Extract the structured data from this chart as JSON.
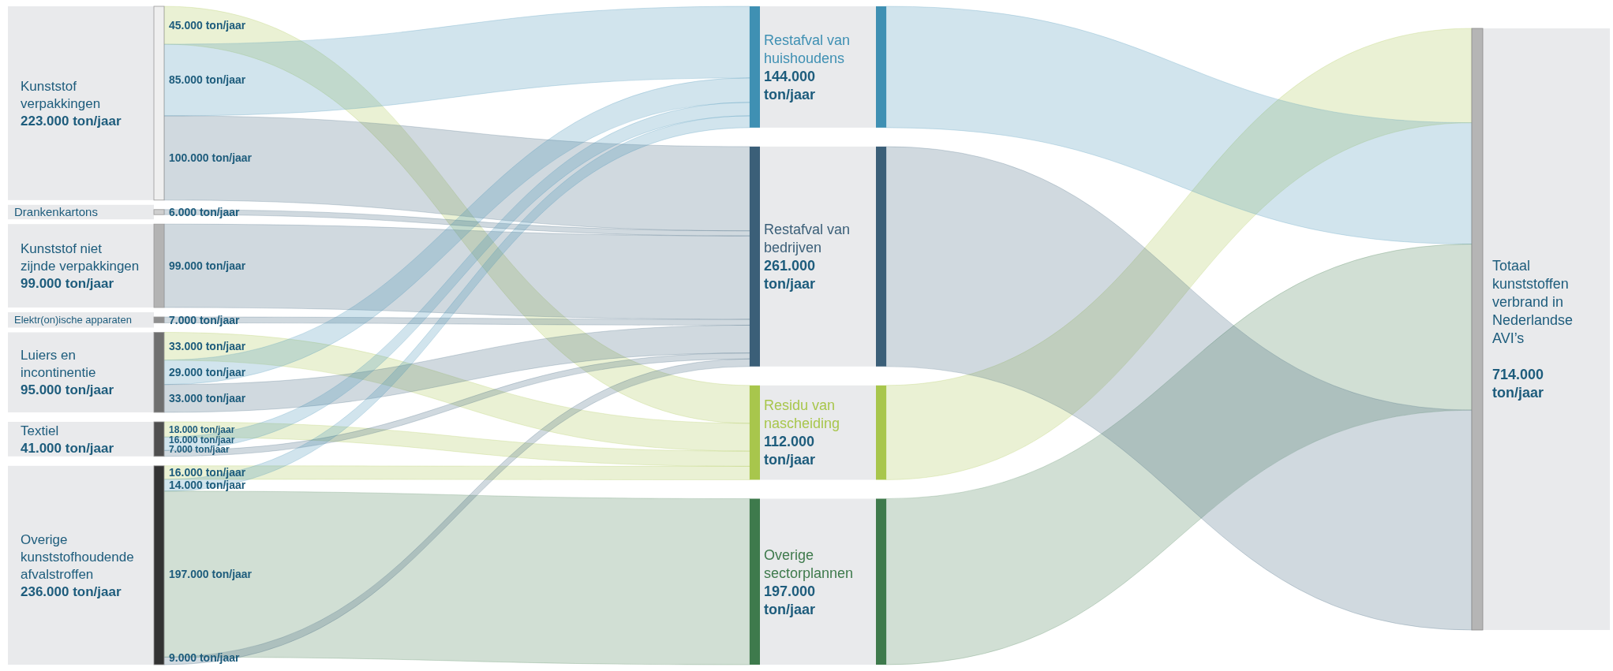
{
  "chart_data": {
    "type": "other",
    "categories": [
      "Kunststof verpakkingen",
      "Drankenkartons",
      "Kunststof niet zijnde verpakkingen",
      "Elektr(on)ische apparaten",
      "Luiers en incontinentie",
      "Textiel",
      "Overige kunststofhoudende afvalstroffen"
    ],
    "colors": [
      "#efefef",
      "#cfcfcf",
      "#b3b3b3",
      "#8f8f8f",
      "#6f6f6f",
      "#4f4f4f",
      "#333333"
    ],
    "totals": [
      "223.000 ton/jaar",
      null,
      "99.000 ton/jaar",
      null,
      "95.000 ton/jaar",
      "41.000 ton/jaar",
      "236.000 ton/jaar"
    ],
    "series": [
      {
        "name": "Restafval van huishoudens",
        "color": "#3f90b3",
        "values": [
          85000,
          null,
          null,
          null,
          29000,
          16000,
          14000
        ],
        "value_labels": [
          "85.000 ton/jaar",
          null,
          null,
          null,
          "29.000 ton/jaar",
          "16.000 ton/jaar",
          "14.000 ton/jaar"
        ]
      },
      {
        "name": "Restafval van bedrijven",
        "color": "#3b5f78",
        "values": [
          100000,
          6000,
          99000,
          7000,
          33000,
          7000,
          9000
        ],
        "value_labels": [
          "100.000 ton/jaar",
          "6.000 ton/jaar",
          "99.000 ton/jaar",
          "7.000 ton/jaar",
          "33.000 ton/jaar",
          "7.000 ton/jaar",
          "9.000 ton/jaar"
        ]
      },
      {
        "name": "Residu van nascheiding",
        "color": "#a8c64c",
        "values": [
          45000,
          null,
          null,
          null,
          33000,
          18000,
          16000
        ],
        "value_labels": [
          "45.000 ton/jaar",
          null,
          null,
          null,
          "33.000 ton/jaar",
          "18.000 ton/jaar",
          "16.000 ton/jaar"
        ]
      },
      {
        "name": "Overige sectorplannen",
        "color": "#3e7a4c",
        "values": [
          null,
          null,
          null,
          null,
          null,
          null,
          197000
        ],
        "value_labels": [
          null,
          null,
          null,
          null,
          null,
          null,
          "197.000 ton/jaar"
        ]
      }
    ],
    "annotations": [
      "144.000 ton/jaar",
      "261.000 ton/jaar",
      "112.000 ton/jaar",
      "197.000 ton/jaar",
      "714.000 ton/jaar"
    ],
    "y2label": "Totaal kunststoffen verbrand in Nederlandse AVI’s"
  }
}
